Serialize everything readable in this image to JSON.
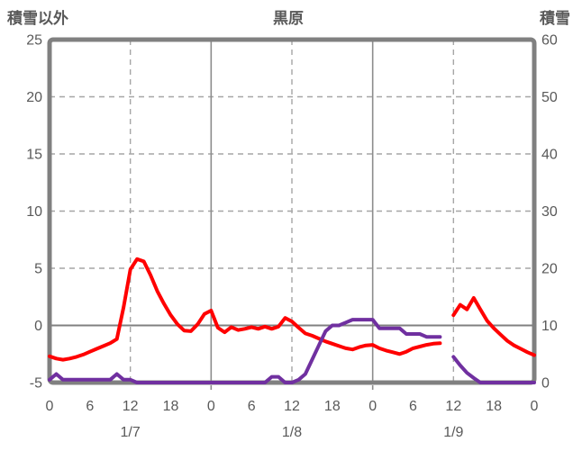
{
  "colors": {
    "red_series": "#ff0000",
    "purple_series": "#7030a0",
    "grid": "#a6a6a6",
    "frame": "#808080",
    "text": "#595959"
  },
  "chart_data": {
    "type": "line",
    "title": "黒原",
    "left_axis_label": "積雪以外",
    "right_axis_label": "積雪",
    "left_axis": {
      "min": -5,
      "max": 25,
      "ticks": [
        25,
        20,
        15,
        10,
        5,
        0,
        -5
      ]
    },
    "right_axis": {
      "min": 0,
      "max": 60,
      "ticks": [
        60,
        50,
        40,
        30,
        20,
        10,
        0
      ]
    },
    "x_hours_total": 72,
    "x_tick_hours": [
      0,
      6,
      12,
      18,
      24,
      30,
      36,
      42,
      48,
      54,
      60,
      66,
      72
    ],
    "x_tick_labels": [
      "0",
      "6",
      "12",
      "18",
      "0",
      "6",
      "12",
      "18",
      "0",
      "6",
      "12",
      "18",
      "0"
    ],
    "date_labels": [
      {
        "label": "1/7",
        "hour": 12
      },
      {
        "label": "1/8",
        "hour": 36
      },
      {
        "label": "1/9",
        "hour": 60
      }
    ],
    "grid": {
      "dashed_hline_left_values": [
        20,
        15,
        10,
        5
      ],
      "solid_hline_left_value": 0,
      "dashed_vline_hours": [
        12,
        36,
        60
      ],
      "solid_vline_hours": [
        24,
        48
      ]
    },
    "series": [
      {
        "name": "積雪以外",
        "axis": "left",
        "color": "#ff0000",
        "values": [
          -2.7,
          -2.9,
          -3.0,
          -2.9,
          -2.75,
          -2.55,
          -2.3,
          -2.05,
          -1.8,
          -1.55,
          -1.2,
          1.6,
          4.9,
          5.8,
          5.6,
          4.4,
          3.0,
          1.9,
          0.9,
          0.1,
          -0.45,
          -0.5,
          0.1,
          1.0,
          1.3,
          -0.2,
          -0.6,
          -0.15,
          -0.4,
          -0.3,
          -0.15,
          -0.3,
          -0.1,
          -0.3,
          -0.1,
          0.65,
          0.35,
          -0.2,
          -0.7,
          -0.9,
          -1.15,
          -1.4,
          -1.6,
          -1.8,
          -2.0,
          -2.1,
          -1.9,
          -1.75,
          -1.7,
          -2.0,
          -2.2,
          -2.35,
          -2.5,
          -2.3,
          -2.0,
          -1.85,
          -1.7,
          -1.6,
          -1.55,
          null,
          0.9,
          1.8,
          1.4,
          2.4,
          1.4,
          0.4,
          -0.25,
          -0.8,
          -1.35,
          -1.75,
          -2.05,
          -2.35,
          -2.6
        ]
      },
      {
        "name": "積雪",
        "axis": "right",
        "color": "#7030a0",
        "values": [
          0.5,
          1.5,
          0.5,
          0.5,
          0.5,
          0.5,
          0.5,
          0.5,
          0.5,
          0.5,
          1.5,
          0.5,
          0.5,
          0,
          0,
          0,
          0,
          0,
          0,
          0,
          0,
          0,
          0,
          0,
          0,
          0,
          0,
          0,
          0,
          0,
          0,
          0,
          0,
          1,
          1,
          0,
          0,
          0.5,
          1.5,
          4,
          6.5,
          9,
          10,
          10,
          10.5,
          11,
          11,
          11,
          11,
          9.5,
          9.5,
          9.5,
          9.5,
          8.5,
          8.5,
          8.5,
          8,
          8,
          8,
          null,
          4.5,
          3,
          1.7,
          0.8,
          0,
          0,
          0,
          0,
          0,
          0,
          0,
          0,
          0
        ]
      }
    ]
  }
}
